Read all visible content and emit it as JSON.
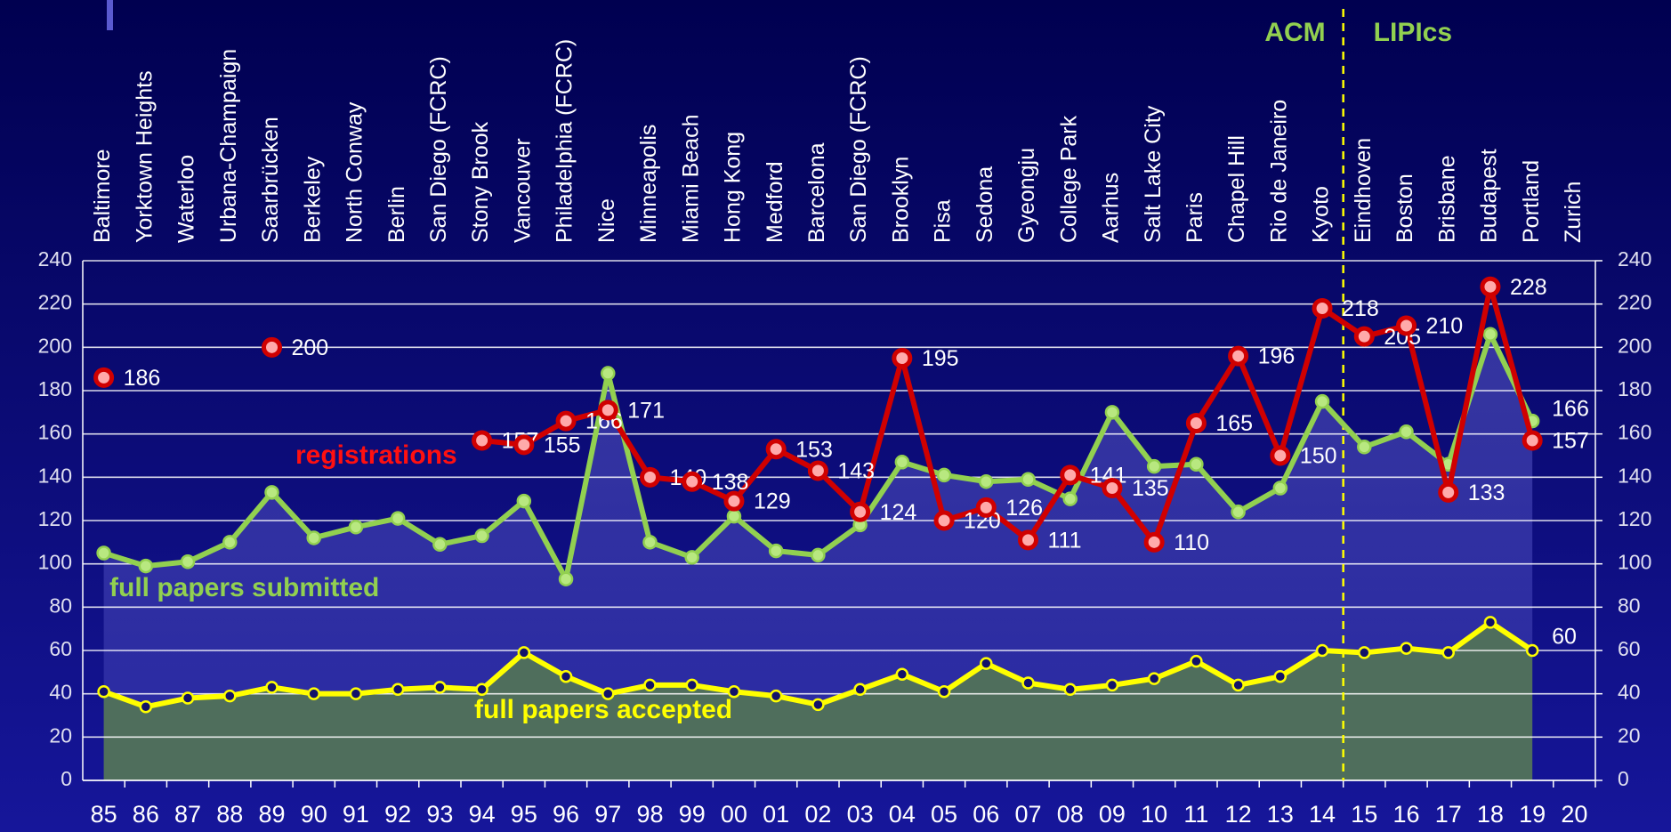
{
  "chart_data": {
    "type": "line",
    "categories": [
      "85",
      "86",
      "87",
      "88",
      "89",
      "90",
      "91",
      "92",
      "93",
      "94",
      "95",
      "96",
      "97",
      "98",
      "99",
      "00",
      "01",
      "02",
      "03",
      "04",
      "05",
      "06",
      "07",
      "08",
      "09",
      "10",
      "11",
      "12",
      "13",
      "14",
      "15",
      "16",
      "17",
      "18",
      "19",
      "20"
    ],
    "venues": [
      "Baltimore",
      "Yorktown Heights",
      "Waterloo",
      "Urbana-Champaign",
      "Saarbrücken",
      "Berkeley",
      "North Conway",
      "Berlin",
      "San Diego (FCRC)",
      "Stony Brook",
      "Vancouver",
      "Philadelphia (FCRC)",
      "Nice",
      "Minneapolis",
      "Miami Beach",
      "Hong Kong",
      "Medford",
      "Barcelona",
      "San Diego (FCRC)",
      "Brooklyn",
      "Pisa",
      "Sedona",
      "Gyeongju",
      "College Park",
      "Aarhus",
      "Salt Lake City",
      "Paris",
      "Chapel Hill",
      "Rio de Janeiro",
      "Kyoto",
      "Eindhoven",
      "Boston",
      "Brisbane",
      "Budapest",
      "Portland",
      "Zurich"
    ],
    "series": [
      {
        "name": "full papers submitted",
        "color": "#92d050",
        "values": [
          105,
          99,
          101,
          110,
          133,
          112,
          117,
          121,
          109,
          113,
          129,
          93,
          188,
          110,
          103,
          122,
          106,
          104,
          118,
          147,
          141,
          138,
          139,
          130,
          170,
          145,
          146,
          124,
          135,
          175,
          154,
          161,
          146,
          206,
          166,
          null
        ]
      },
      {
        "name": "registrations",
        "color": "#d00000",
        "values": [
          186,
          null,
          null,
          null,
          200,
          null,
          null,
          null,
          null,
          157,
          155,
          166,
          171,
          140,
          138,
          129,
          153,
          143,
          124,
          195,
          120,
          126,
          111,
          141,
          135,
          110,
          165,
          196,
          150,
          218,
          205,
          210,
          133,
          228,
          157,
          null
        ]
      },
      {
        "name": "full papers accepted",
        "color": "#ffff00",
        "values": [
          41,
          34,
          38,
          39,
          43,
          40,
          40,
          42,
          43,
          42,
          59,
          48,
          40,
          44,
          44,
          41,
          39,
          35,
          42,
          49,
          41,
          54,
          45,
          42,
          44,
          47,
          55,
          44,
          48,
          60,
          59,
          61,
          59,
          73,
          60,
          null
        ]
      }
    ],
    "annotations": [
      "ACM",
      "LIPIcs"
    ],
    "ylim": [
      0,
      240
    ],
    "yticks": [
      0,
      20,
      40,
      60,
      80,
      100,
      120,
      140,
      160,
      180,
      200,
      220,
      240
    ],
    "y2lim": [
      0,
      240
    ],
    "y2ticks": [
      0,
      20,
      40,
      60,
      80,
      100,
      120,
      140,
      160,
      180,
      200,
      220,
      240
    ],
    "grid": true
  }
}
